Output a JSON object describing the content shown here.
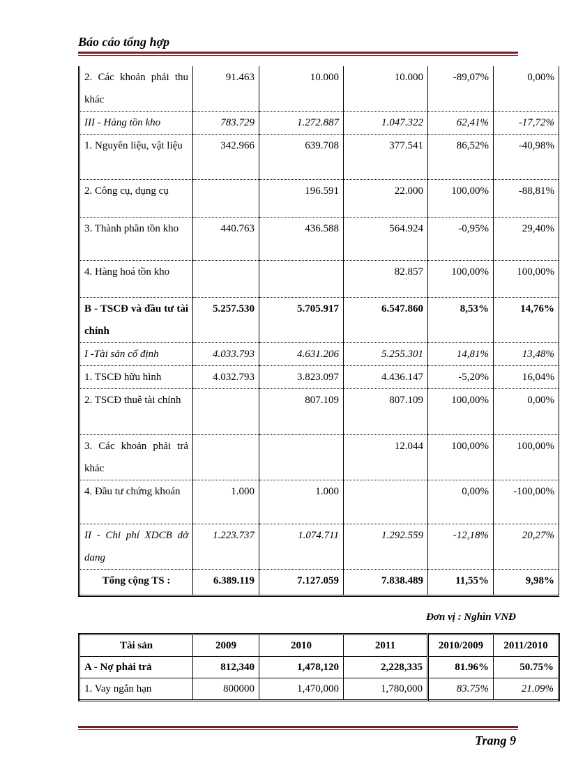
{
  "header": {
    "title": "Báo cáo tổng hợp"
  },
  "table": {
    "rows": [
      [
        "2. Các khoản phải thu khác",
        "91.463",
        "10.000",
        "10.000",
        "-89,07%",
        "0,00%"
      ],
      [
        "III - Hàng tồn kho",
        "783.729",
        "1.272.887",
        "1.047.322",
        "62,41%",
        "-17,72%"
      ],
      [
        "1. Nguyên liệu, vật liệu",
        "342.966",
        "639.708",
        "377.541",
        "86,52%",
        "-40,98%"
      ],
      [
        "2. Công cụ, dụng cụ",
        null,
        "196.591",
        "22.000",
        "100,00%",
        "-88,81%"
      ],
      [
        "3. Thành phần tồn kho",
        "440.763",
        "436.588",
        "564.924",
        "-0,95%",
        "29,40%"
      ],
      [
        "4. Hàng hoá tồn kho",
        null,
        null,
        "82.857",
        "100,00%",
        "100,00%"
      ],
      [
        "B - TSCĐ và đầu tư tài chính",
        "5.257.530",
        "5.705.917",
        "6.547.860",
        "8,53%",
        "14,76%"
      ],
      [
        "I -Tài sản cố định",
        "4.033.793",
        "4.631.206",
        "5.255.301",
        "14,81%",
        "13,48%"
      ],
      [
        "1. TSCĐ hữu hình",
        "4.032.793",
        "3.823.097",
        "4.436.147",
        "-5,20%",
        "16,04%"
      ],
      [
        "2. TSCĐ thuê tài chính",
        null,
        "807.109",
        "807.109",
        "100,00%",
        "0,00%"
      ],
      [
        "3. Các khoản phải trả khác",
        null,
        null,
        "12.044",
        "100,00%",
        "100,00%"
      ],
      [
        "4. Đầu tư chứng khoán",
        "1.000",
        "1.000",
        null,
        "0,00%",
        "-100,00%"
      ],
      [
        "II - Chi phí XDCB dở dang",
        "1.223.737",
        "1.074.711",
        "1.292.559",
        "-12,18%",
        "20,27%"
      ],
      [
        "Tổng cộng TS :",
        "6.389.119",
        "7.127.059",
        "7.838.489",
        "11,55%",
        "9,98%"
      ]
    ]
  },
  "unit_note": "Đơn vị : Nghìn VNĐ",
  "table2": {
    "header": [
      "Tài sản",
      "2009",
      "2010",
      "2011",
      "2010/2009",
      "2011/2010"
    ],
    "rows": [
      [
        "A - Nợ phải trả",
        "812,340",
        "1,478,120",
        "2,228,335",
        "81.96%",
        "50.75%"
      ],
      [
        "1. Vay ngắn hạn",
        "800000",
        "1,470,000",
        "1,780,000",
        "83.75%",
        "21.09%"
      ]
    ]
  },
  "footer": {
    "page": "Trang 9"
  }
}
